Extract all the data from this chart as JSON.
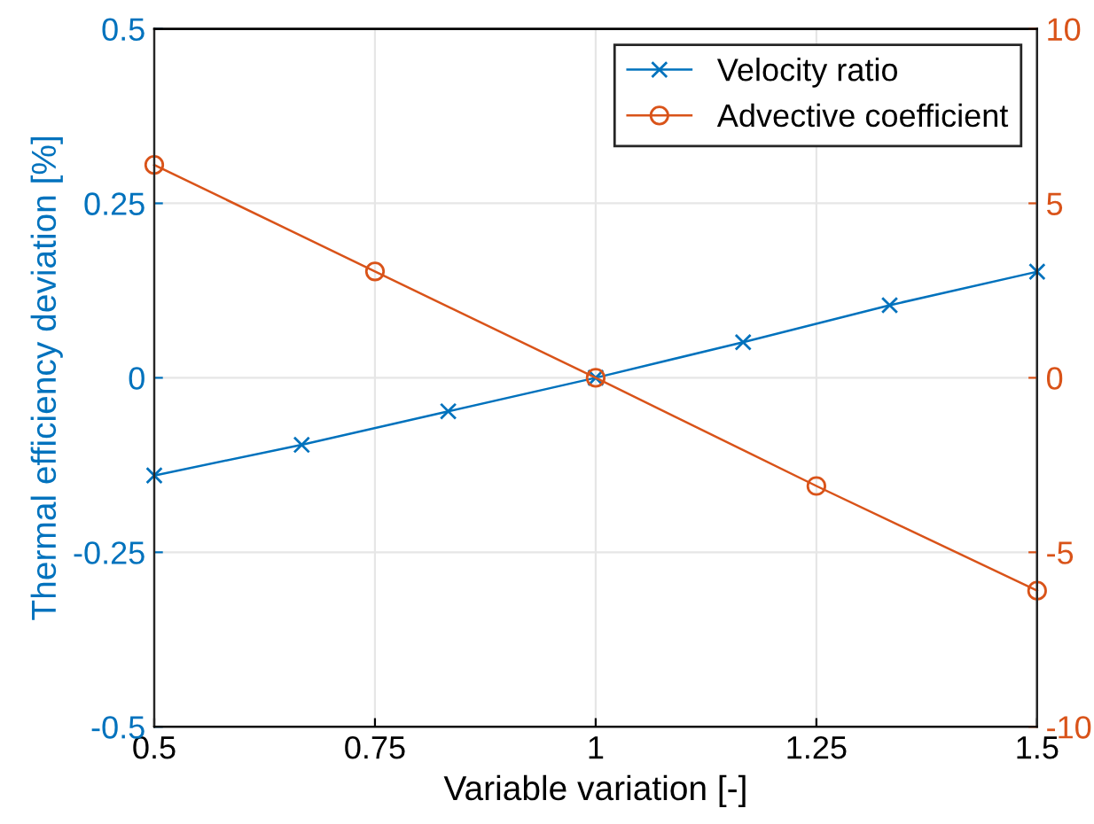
{
  "chart_data": {
    "type": "line",
    "xlabel": "Variable variation [-]",
    "ylabel": "Thermal efficiency deviation [%]",
    "xlim": [
      0.5,
      1.5
    ],
    "xticks": [
      0.5,
      0.75,
      1,
      1.25,
      1.5
    ],
    "ylim": [
      -0.5,
      0.5
    ],
    "yticks": [
      -0.5,
      -0.25,
      0,
      0.25,
      0.5
    ],
    "y2lim": [
      -10,
      10
    ],
    "y2ticks": [
      -10,
      -5,
      0,
      5,
      10
    ],
    "grid": true,
    "legend": "top right",
    "line_style": "solid",
    "series": [
      {
        "name": "Velocity ratio",
        "color": "#0072bd",
        "marker": "cross",
        "x": [
          0.5,
          0.667,
          0.833,
          1,
          1.167,
          1.333,
          1.5
        ],
        "values": [
          -0.14,
          -0.096,
          -0.048,
          0,
          0.051,
          0.104,
          0.152
        ]
      },
      {
        "name": "Advective coefficient",
        "color": "#d95319",
        "marker": "circle",
        "axis": "y2",
        "x": [
          0.5,
          0.75,
          1,
          1.25,
          1.5
        ],
        "values": [
          6.1,
          3.05,
          0,
          -3.1,
          -6.1
        ]
      }
    ]
  }
}
